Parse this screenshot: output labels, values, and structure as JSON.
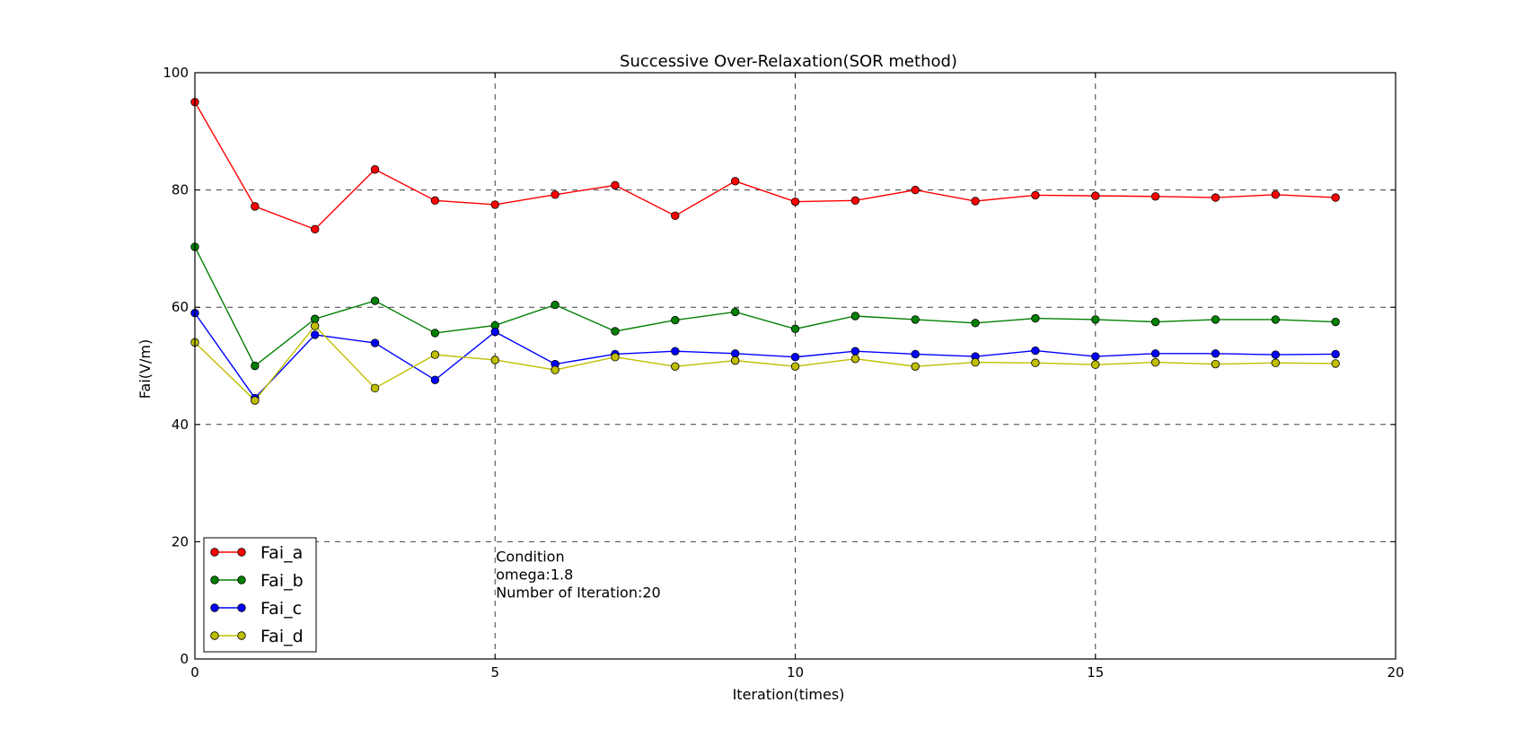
{
  "chart_data": {
    "type": "line",
    "title": "Successive Over-Relaxation(SOR method)",
    "xlabel": "Iteration(times)",
    "ylabel": "Fai(V/m)",
    "xlim": [
      0,
      20
    ],
    "ylim": [
      0,
      100
    ],
    "x_ticks": [
      "0",
      "5",
      "10",
      "15",
      "20"
    ],
    "y_ticks": [
      "0",
      "20",
      "40",
      "60",
      "80",
      "100"
    ],
    "grid": "dashed",
    "grid_x_values": [
      5,
      10,
      15
    ],
    "grid_y_values": [
      20,
      40,
      60,
      80
    ],
    "legend_position": "bottom-left",
    "x": [
      0,
      1,
      2,
      3,
      4,
      5,
      6,
      7,
      8,
      9,
      10,
      11,
      12,
      13,
      14,
      15,
      16,
      17,
      18,
      19
    ],
    "series": [
      {
        "name": "Fai_a",
        "color": "#ff0000",
        "values": [
          95.0,
          77.2,
          73.3,
          83.5,
          78.2,
          77.5,
          79.2,
          80.8,
          75.6,
          81.5,
          78.0,
          78.2,
          80.0,
          78.1,
          79.1,
          79.0,
          78.9,
          78.7,
          79.2,
          78.7
        ]
      },
      {
        "name": "Fai_b",
        "color": "#008000",
        "values": [
          70.3,
          50.0,
          58.0,
          61.1,
          55.6,
          56.9,
          60.4,
          55.9,
          57.8,
          59.2,
          56.3,
          58.5,
          57.9,
          57.3,
          58.1,
          57.9,
          57.5,
          57.9,
          57.9,
          57.5
        ]
      },
      {
        "name": "Fai_c",
        "color": "#0000ff",
        "values": [
          59.0,
          44.5,
          55.3,
          53.9,
          47.6,
          55.8,
          50.3,
          52.0,
          52.5,
          52.1,
          51.5,
          52.5,
          52.0,
          51.6,
          52.6,
          51.6,
          52.1,
          52.1,
          51.9,
          52.0
        ]
      },
      {
        "name": "Fai_d",
        "color": "#bfbf00",
        "values": [
          54.0,
          44.1,
          56.8,
          46.2,
          51.9,
          51.0,
          49.3,
          51.5,
          49.9,
          50.9,
          49.9,
          51.2,
          49.9,
          50.6,
          50.5,
          50.2,
          50.6,
          50.3,
          50.5,
          50.4
        ]
      }
    ],
    "annotation": {
      "lines": [
        "Condition",
        "omega:1.8",
        "Number of Iteration:20"
      ],
      "anchor_x": 5,
      "anchor_y": 10.5
    }
  }
}
